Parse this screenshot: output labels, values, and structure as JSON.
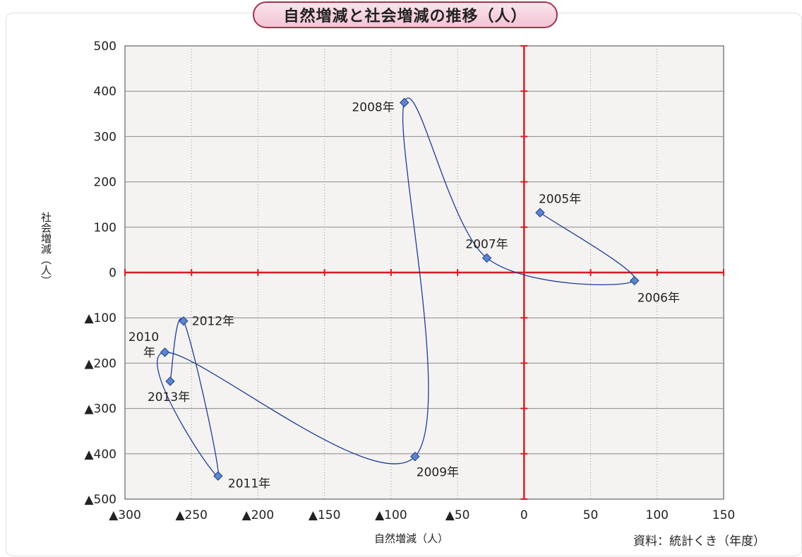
{
  "title": "自然増減と社会増減の推移（人）",
  "source": "資料：統計くき（年度）",
  "chart_data": {
    "type": "scatter",
    "title": "自然増減と社会増減の推移（人）",
    "xlabel": "自然増減（人）",
    "ylabel": "社会増減（人）",
    "xlim": [
      -300,
      150
    ],
    "ylim": [
      -500,
      500
    ],
    "x_ticks": [
      -300,
      -250,
      -200,
      -150,
      -100,
      -50,
      0,
      50,
      100,
      150
    ],
    "x_tick_labels": [
      "▲300",
      "▲250",
      "▲200",
      "▲150",
      "▲100",
      "▲50",
      "0",
      "50",
      "100",
      "150"
    ],
    "y_ticks": [
      500,
      400,
      300,
      200,
      100,
      0,
      -100,
      -200,
      -300,
      -400,
      -500
    ],
    "y_tick_labels": [
      "500",
      "400",
      "300",
      "200",
      "100",
      "0",
      "▲100",
      "▲200",
      "▲300",
      "▲400",
      "▲500"
    ],
    "grid": true,
    "connected": true,
    "points": [
      {
        "label": "2005年",
        "x": 12,
        "y": 132
      },
      {
        "label": "2006年",
        "x": 83,
        "y": -18
      },
      {
        "label": "2007年",
        "x": -28,
        "y": 32
      },
      {
        "label": "2008年",
        "x": -90,
        "y": 375
      },
      {
        "label": "2009年",
        "x": -82,
        "y": -406
      },
      {
        "label": "2010年",
        "x": -270,
        "y": -176
      },
      {
        "label": "2011年",
        "x": -230,
        "y": -449
      },
      {
        "label": "2012年",
        "x": -256,
        "y": -107
      },
      {
        "label": "2013年",
        "x": -266,
        "y": -240
      }
    ],
    "colors": {
      "line": "#1f3c98",
      "marker": "#5b86c8",
      "zero_axes": "#d91c23",
      "plot_bg": "#f4f3f1",
      "grid": "#888888"
    }
  }
}
